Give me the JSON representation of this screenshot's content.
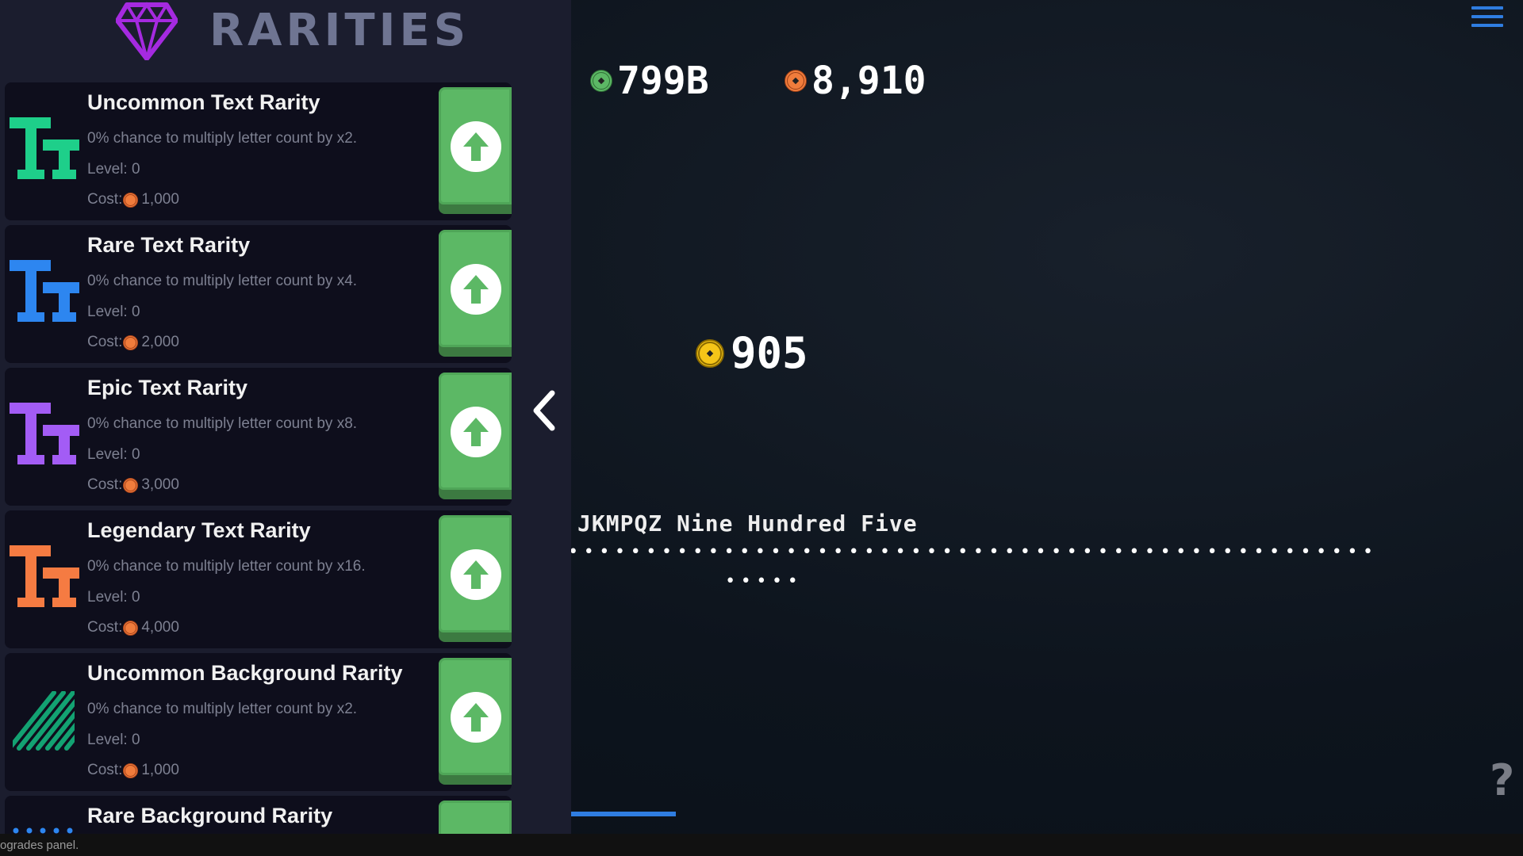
{
  "panel": {
    "title": "RARITIES",
    "upgrades": [
      {
        "title": "Uncommon Text Rarity",
        "description": "0% chance to multiply letter count by x2.",
        "level": "Level: 0",
        "cost_label": "Cost:",
        "cost": "1,000",
        "icon": "text-icon",
        "color": "#1ecf8a"
      },
      {
        "title": "Rare Text Rarity",
        "description": "0% chance to multiply letter count by x4.",
        "level": "Level: 0",
        "cost_label": "Cost:",
        "cost": "2,000",
        "icon": "text-icon",
        "color": "#2d86f0"
      },
      {
        "title": "Epic Text Rarity",
        "description": "0% chance to multiply letter count by x8.",
        "level": "Level: 0",
        "cost_label": "Cost:",
        "cost": "3,000",
        "icon": "text-icon",
        "color": "#a35cf5"
      },
      {
        "title": "Legendary Text Rarity",
        "description": "0% chance to multiply letter count by x16.",
        "level": "Level: 0",
        "cost_label": "Cost:",
        "cost": "4,000",
        "icon": "text-icon",
        "color": "#f57b42"
      },
      {
        "title": "Uncommon Background Rarity",
        "description": "0% chance to multiply letter count by x2.",
        "level": "Level: 0",
        "cost_label": "Cost:",
        "cost": "1,000",
        "icon": "stripes-icon",
        "color": "#13a272"
      },
      {
        "title": "Rare Background Rarity",
        "icon": "dots-icon",
        "color": "#2d86f0"
      }
    ]
  },
  "currencies": {
    "green": "799B",
    "orange": "8,910",
    "gold": "905",
    "colors": {
      "green": "#5cb865",
      "orange": "#f07c3c",
      "gold": "#f5c518"
    }
  },
  "word": "JKMPQZ Nine Hundred Five",
  "dots_row1": "••••••••••••••••••••••••••••••••••••••••••••••••••••",
  "dots_row2": "•••••",
  "progress": 0.11,
  "help": "?",
  "status": "ogrades panel."
}
